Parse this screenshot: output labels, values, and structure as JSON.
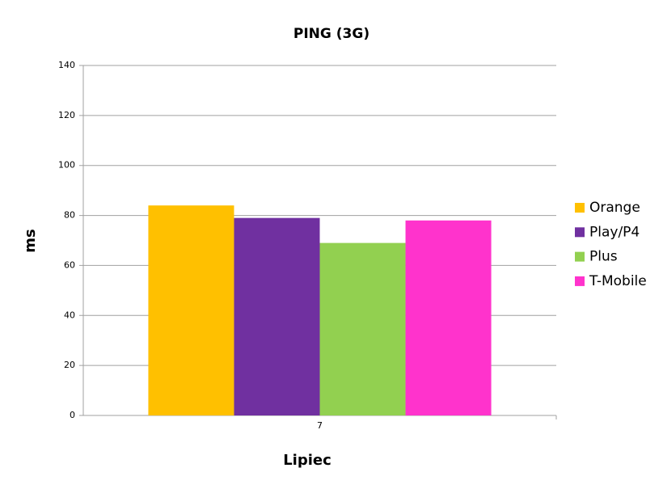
{
  "chart_data": {
    "type": "bar",
    "title": "PING (3G)",
    "x_label": "Lipiec",
    "y_label": "ms",
    "categories": [
      "7"
    ],
    "series": [
      {
        "name": "Orange",
        "color": "#ffc000",
        "values": [
          84
        ]
      },
      {
        "name": "Play/P4",
        "color": "#7030a0",
        "values": [
          79
        ]
      },
      {
        "name": "Plus",
        "color": "#92d050",
        "values": [
          69
        ]
      },
      {
        "name": "T-Mobile",
        "color": "#ff33cc",
        "values": [
          78
        ]
      }
    ],
    "ylim": [
      0,
      140
    ],
    "yticks": [
      0,
      20,
      40,
      60,
      80,
      100,
      120,
      140
    ],
    "grid": true,
    "legend": "right"
  }
}
